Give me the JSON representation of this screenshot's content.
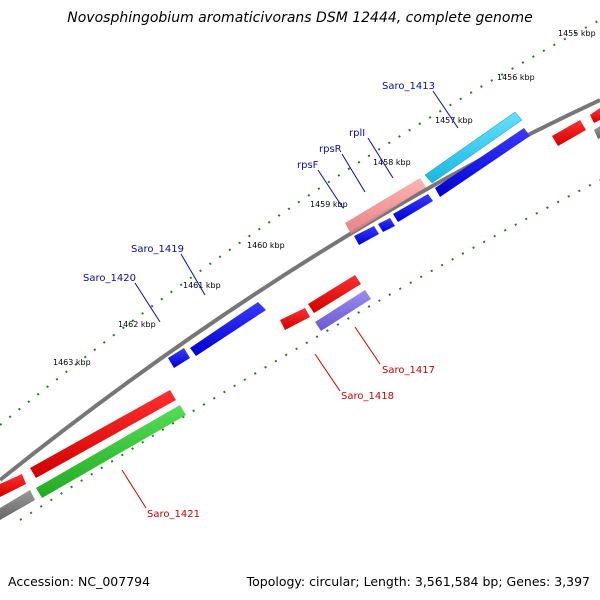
{
  "title": "Novosphingobium aromaticivorans DSM 12444, complete genome",
  "footer": {
    "accession": "Accession: NC_007794",
    "summary": "Topology: circular; Length: 3,561,584 bp; Genes: 3,397"
  },
  "ticks": [
    "1455 kbp",
    "1456 kbp",
    "1457 kbp",
    "1458 kbp",
    "1459 kbp",
    "1460 kbp",
    "1461 kbp",
    "1462 kbp",
    "1463 kbp"
  ],
  "genes_forward": [
    "Saro_1413",
    "rplI",
    "rpsR",
    "rpsF",
    "Saro_1419",
    "Saro_1420"
  ],
  "genes_reverse": [
    "Saro_1417",
    "Saro_1418",
    "Saro_1421"
  ],
  "colors": {
    "backbone": "#808080",
    "forward_gene": "#0000ee",
    "reverse_gene": "#ee0000",
    "rna": "#22bb22",
    "highlight_cyan": "#22ccee",
    "highlight_pink": "#ee8888",
    "highlight_purple": "#7766dd",
    "tick": "#2a7a2a",
    "forward_label": "#0a0aaa",
    "reverse_label": "#cc0000"
  }
}
